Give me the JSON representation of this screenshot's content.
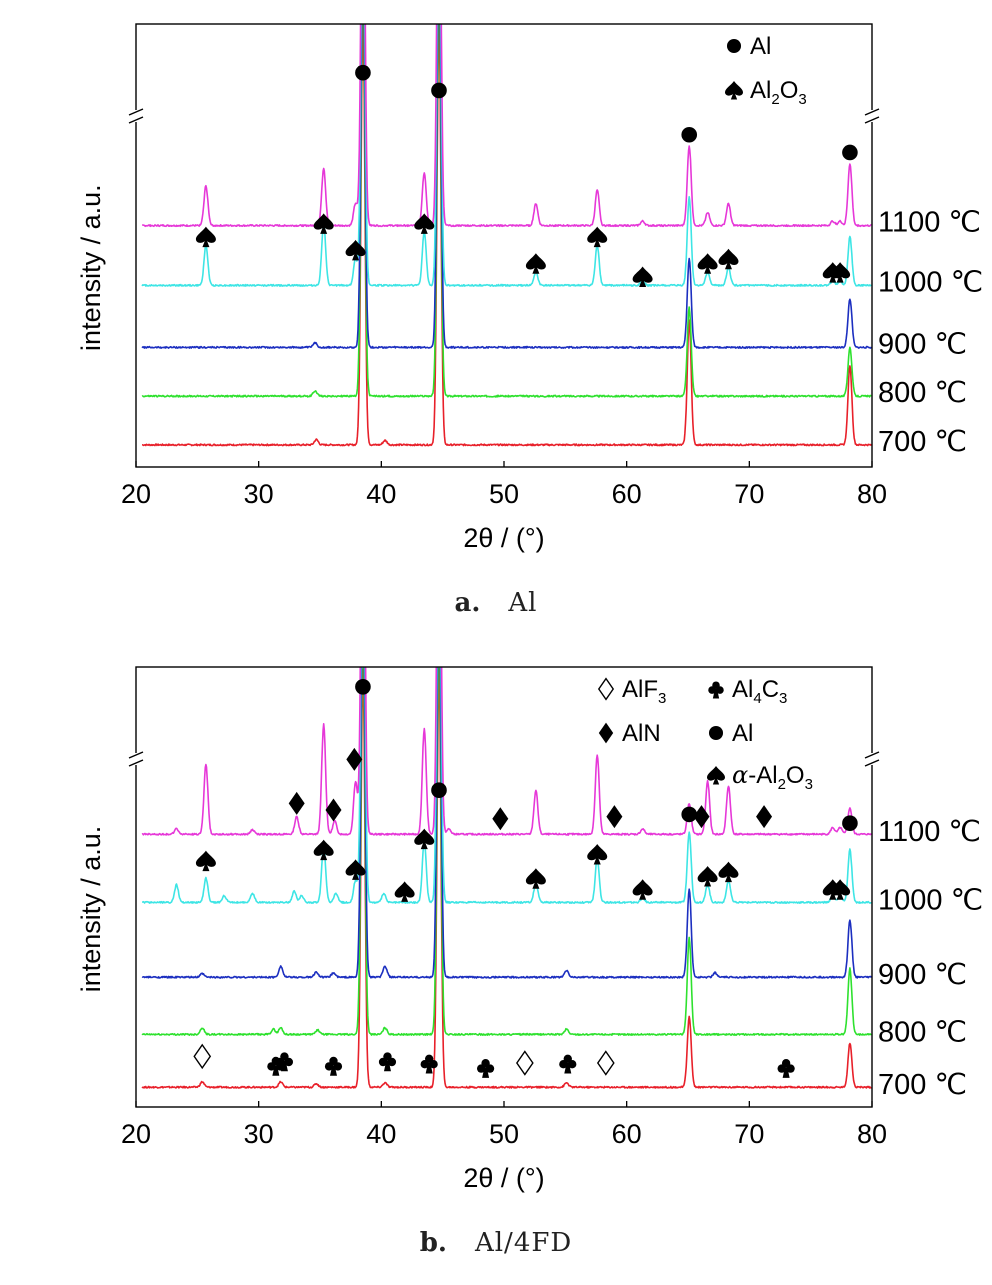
{
  "chart_data": [
    {
      "id": "a",
      "type": "line",
      "xlabel": "2θ / (°)",
      "ylabel": "intensity / a.u.",
      "xlim": [
        20,
        80
      ],
      "xticks": [
        20,
        30,
        40,
        50,
        60,
        70,
        80
      ],
      "axis_break": true,
      "caption": {
        "letter": "a.",
        "text": "Al"
      },
      "legend": [
        {
          "symbol": "circle",
          "text": "Al"
        },
        {
          "symbol": "spade",
          "text": "Al",
          "sub1": "2",
          "text2": "O",
          "sub2": "3"
        }
      ],
      "series": [
        {
          "name": "700 ℃",
          "color": "#e8202a",
          "baseline": 0.05,
          "peaks": [
            [
              34.7,
              0.012
            ],
            [
              38.5,
              0.95
            ],
            [
              40.3,
              0.01
            ],
            [
              44.7,
              0.95
            ],
            [
              65.1,
              0.28
            ],
            [
              78.2,
              0.18
            ]
          ]
        },
        {
          "name": "800 ℃",
          "color": "#2ee12e",
          "baseline": 0.16,
          "peaks": [
            [
              34.6,
              0.012
            ],
            [
              38.5,
              0.95
            ],
            [
              44.7,
              0.95
            ],
            [
              65.1,
              0.2
            ],
            [
              78.2,
              0.11
            ]
          ]
        },
        {
          "name": "900 ℃",
          "color": "#1c2fc0",
          "baseline": 0.27,
          "peaks": [
            [
              34.6,
              0.01
            ],
            [
              38.5,
              0.95
            ],
            [
              44.7,
              0.95
            ],
            [
              65.1,
              0.2
            ],
            [
              78.2,
              0.11
            ]
          ]
        },
        {
          "name": "1000 ℃",
          "color": "#3ee5e5",
          "baseline": 0.41,
          "peaks": [
            [
              25.7,
              0.09
            ],
            [
              35.3,
              0.14
            ],
            [
              37.9,
              0.06
            ],
            [
              38.5,
              0.95
            ],
            [
              43.5,
              0.12
            ],
            [
              44.7,
              0.95
            ],
            [
              52.6,
              0.03
            ],
            [
              57.6,
              0.09
            ],
            [
              61.3,
              0.01
            ],
            [
              65.1,
              0.2
            ],
            [
              66.6,
              0.03
            ],
            [
              68.3,
              0.04
            ],
            [
              76.8,
              0.01
            ],
            [
              77.4,
              0.01
            ],
            [
              78.2,
              0.11
            ]
          ]
        },
        {
          "name": "1100 ℃",
          "color": "#e638d8",
          "baseline": 0.545,
          "peaks": [
            [
              25.7,
              0.09
            ],
            [
              35.3,
              0.13
            ],
            [
              37.9,
              0.05
            ],
            [
              38.5,
              0.95
            ],
            [
              43.5,
              0.12
            ],
            [
              44.7,
              0.95
            ],
            [
              52.6,
              0.05
            ],
            [
              57.6,
              0.08
            ],
            [
              61.3,
              0.01
            ],
            [
              65.1,
              0.18
            ],
            [
              66.6,
              0.03
            ],
            [
              68.3,
              0.05
            ],
            [
              76.8,
              0.01
            ],
            [
              77.4,
              0.01
            ],
            [
              78.2,
              0.14
            ]
          ]
        }
      ],
      "markers": [
        {
          "symbol": "circle",
          "x": 38.5,
          "y": 0.89
        },
        {
          "symbol": "circle",
          "x": 44.7,
          "y": 0.85
        },
        {
          "symbol": "circle",
          "x": 65.1,
          "y": 0.75
        },
        {
          "symbol": "circle",
          "x": 78.2,
          "y": 0.71
        },
        {
          "symbol": "spade",
          "x": 25.7,
          "y": 0.52
        },
        {
          "symbol": "spade",
          "x": 35.3,
          "y": 0.55
        },
        {
          "symbol": "spade",
          "x": 37.9,
          "y": 0.49
        },
        {
          "symbol": "spade",
          "x": 43.5,
          "y": 0.55
        },
        {
          "symbol": "spade",
          "x": 52.6,
          "y": 0.46
        },
        {
          "symbol": "spade",
          "x": 57.6,
          "y": 0.52
        },
        {
          "symbol": "spade",
          "x": 61.3,
          "y": 0.43
        },
        {
          "symbol": "spade",
          "x": 66.6,
          "y": 0.46
        },
        {
          "symbol": "spade",
          "x": 68.3,
          "y": 0.47
        },
        {
          "symbol": "spade",
          "x": 76.8,
          "y": 0.44
        },
        {
          "symbol": "spade",
          "x": 77.4,
          "y": 0.44
        }
      ]
    },
    {
      "id": "b",
      "type": "line",
      "xlabel": "2θ / (°)",
      "ylabel": "intensity / a.u.",
      "xlim": [
        20,
        80
      ],
      "xticks": [
        20,
        30,
        40,
        50,
        60,
        70,
        80
      ],
      "axis_break": true,
      "caption": {
        "letter": "b.",
        "text": "Al/4FD"
      },
      "legend": [
        {
          "symbol": "diamond-open",
          "text": "AlF",
          "sub1": "3"
        },
        {
          "symbol": "club",
          "text": "Al",
          "sub1": "4",
          "text2": "C",
          "sub2": "3"
        },
        {
          "symbol": "diamond",
          "text": "AlN"
        },
        {
          "symbol": "circle",
          "text": "Al"
        },
        {
          "symbol": "spade",
          "prefix": "α",
          "text": "-Al",
          "sub1": "2",
          "text2": "O",
          "sub2": "3"
        }
      ],
      "series": [
        {
          "name": "700 ℃",
          "color": "#e8202a",
          "baseline": 0.045,
          "peaks": [
            [
              25.4,
              0.012
            ],
            [
              31.8,
              0.012
            ],
            [
              34.7,
              0.008
            ],
            [
              38.5,
              0.95
            ],
            [
              40.3,
              0.01
            ],
            [
              44.7,
              0.95
            ],
            [
              55.1,
              0.01
            ],
            [
              65.1,
              0.16
            ],
            [
              78.2,
              0.1
            ]
          ]
        },
        {
          "name": "800 ℃",
          "color": "#2ee12e",
          "baseline": 0.165,
          "peaks": [
            [
              25.4,
              0.015
            ],
            [
              31.2,
              0.012
            ],
            [
              31.8,
              0.015
            ],
            [
              34.8,
              0.01
            ],
            [
              38.5,
              0.95
            ],
            [
              40.3,
              0.015
            ],
            [
              44.7,
              0.95
            ],
            [
              55.1,
              0.012
            ],
            [
              65.1,
              0.22
            ],
            [
              78.2,
              0.15
            ]
          ]
        },
        {
          "name": "900 ℃",
          "color": "#1c2fc0",
          "baseline": 0.295,
          "peaks": [
            [
              25.4,
              0.008
            ],
            [
              31.8,
              0.025
            ],
            [
              34.7,
              0.012
            ],
            [
              36.1,
              0.01
            ],
            [
              38.5,
              0.95
            ],
            [
              40.3,
              0.025
            ],
            [
              44.7,
              0.95
            ],
            [
              55.1,
              0.015
            ],
            [
              65.1,
              0.2
            ],
            [
              67.2,
              0.01
            ],
            [
              78.2,
              0.13
            ]
          ]
        },
        {
          "name": "1000 ℃",
          "color": "#3ee5e5",
          "baseline": 0.465,
          "peaks": [
            [
              23.3,
              0.04
            ],
            [
              25.7,
              0.055
            ],
            [
              27.2,
              0.015
            ],
            [
              29.5,
              0.02
            ],
            [
              32.9,
              0.025
            ],
            [
              33.5,
              0.015
            ],
            [
              35.3,
              0.13
            ],
            [
              36.3,
              0.02
            ],
            [
              37.9,
              0.05
            ],
            [
              38.5,
              0.95
            ],
            [
              40.2,
              0.02
            ],
            [
              43.5,
              0.14
            ],
            [
              44.7,
              0.95
            ],
            [
              52.6,
              0.045
            ],
            [
              57.6,
              0.1
            ],
            [
              61.3,
              0.01
            ],
            [
              65.1,
              0.16
            ],
            [
              66.6,
              0.04
            ],
            [
              68.3,
              0.05
            ],
            [
              76.8,
              0.015
            ],
            [
              77.4,
              0.015
            ],
            [
              78.2,
              0.12
            ]
          ]
        },
        {
          "name": "1100 ℃",
          "color": "#e638d8",
          "baseline": 0.62,
          "peaks": [
            [
              23.3,
              0.012
            ],
            [
              25.7,
              0.16
            ],
            [
              29.5,
              0.01
            ],
            [
              33.1,
              0.04
            ],
            [
              35.3,
              0.25
            ],
            [
              36.2,
              0.03
            ],
            [
              37.9,
              0.12
            ],
            [
              38.5,
              0.95
            ],
            [
              43.5,
              0.24
            ],
            [
              44.7,
              0.95
            ],
            [
              45.5,
              0.012
            ],
            [
              52.6,
              0.1
            ],
            [
              57.6,
              0.18
            ],
            [
              61.3,
              0.012
            ],
            [
              65.1,
              0.07
            ],
            [
              66.6,
              0.12
            ],
            [
              68.3,
              0.11
            ],
            [
              76.8,
              0.015
            ],
            [
              77.4,
              0.015
            ],
            [
              78.2,
              0.06
            ]
          ]
        }
      ],
      "markers": [
        {
          "symbol": "circle",
          "x": 38.5,
          "y": 0.955
        },
        {
          "symbol": "circle",
          "x": 44.7,
          "y": 0.72
        },
        {
          "symbol": "circle",
          "x": 65.1,
          "y": 0.665
        },
        {
          "symbol": "circle",
          "x": 78.2,
          "y": 0.645
        },
        {
          "symbol": "diamond",
          "x": 33.1,
          "y": 0.69
        },
        {
          "symbol": "diamond",
          "x": 36.1,
          "y": 0.675
        },
        {
          "symbol": "diamond",
          "x": 37.8,
          "y": 0.79
        },
        {
          "symbol": "diamond",
          "x": 49.7,
          "y": 0.655
        },
        {
          "symbol": "diamond",
          "x": 59.0,
          "y": 0.66
        },
        {
          "symbol": "diamond",
          "x": 66.1,
          "y": 0.66
        },
        {
          "symbol": "diamond",
          "x": 71.2,
          "y": 0.66
        },
        {
          "symbol": "spade",
          "x": 25.7,
          "y": 0.56
        },
        {
          "symbol": "spade",
          "x": 35.3,
          "y": 0.585
        },
        {
          "symbol": "spade",
          "x": 37.9,
          "y": 0.54
        },
        {
          "symbol": "spade",
          "x": 41.9,
          "y": 0.49
        },
        {
          "symbol": "spade",
          "x": 43.5,
          "y": 0.61
        },
        {
          "symbol": "spade",
          "x": 52.6,
          "y": 0.52
        },
        {
          "symbol": "spade",
          "x": 57.6,
          "y": 0.575
        },
        {
          "symbol": "spade",
          "x": 61.3,
          "y": 0.495
        },
        {
          "symbol": "spade",
          "x": 66.6,
          "y": 0.525
        },
        {
          "symbol": "spade",
          "x": 68.3,
          "y": 0.535
        },
        {
          "symbol": "spade",
          "x": 76.8,
          "y": 0.495
        },
        {
          "symbol": "spade",
          "x": 77.4,
          "y": 0.495
        },
        {
          "symbol": "diamond-open",
          "x": 25.4,
          "y": 0.115
        },
        {
          "symbol": "diamond-open",
          "x": 51.7,
          "y": 0.1
        },
        {
          "symbol": "diamond-open",
          "x": 58.3,
          "y": 0.1
        },
        {
          "symbol": "club",
          "x": 31.4,
          "y": 0.095
        },
        {
          "symbol": "club",
          "x": 32.1,
          "y": 0.105
        },
        {
          "symbol": "club",
          "x": 36.1,
          "y": 0.095
        },
        {
          "symbol": "club",
          "x": 40.5,
          "y": 0.105
        },
        {
          "symbol": "club",
          "x": 43.9,
          "y": 0.1
        },
        {
          "symbol": "club",
          "x": 48.5,
          "y": 0.09
        },
        {
          "symbol": "club",
          "x": 55.2,
          "y": 0.1
        },
        {
          "symbol": "club",
          "x": 73.0,
          "y": 0.09
        }
      ]
    }
  ]
}
